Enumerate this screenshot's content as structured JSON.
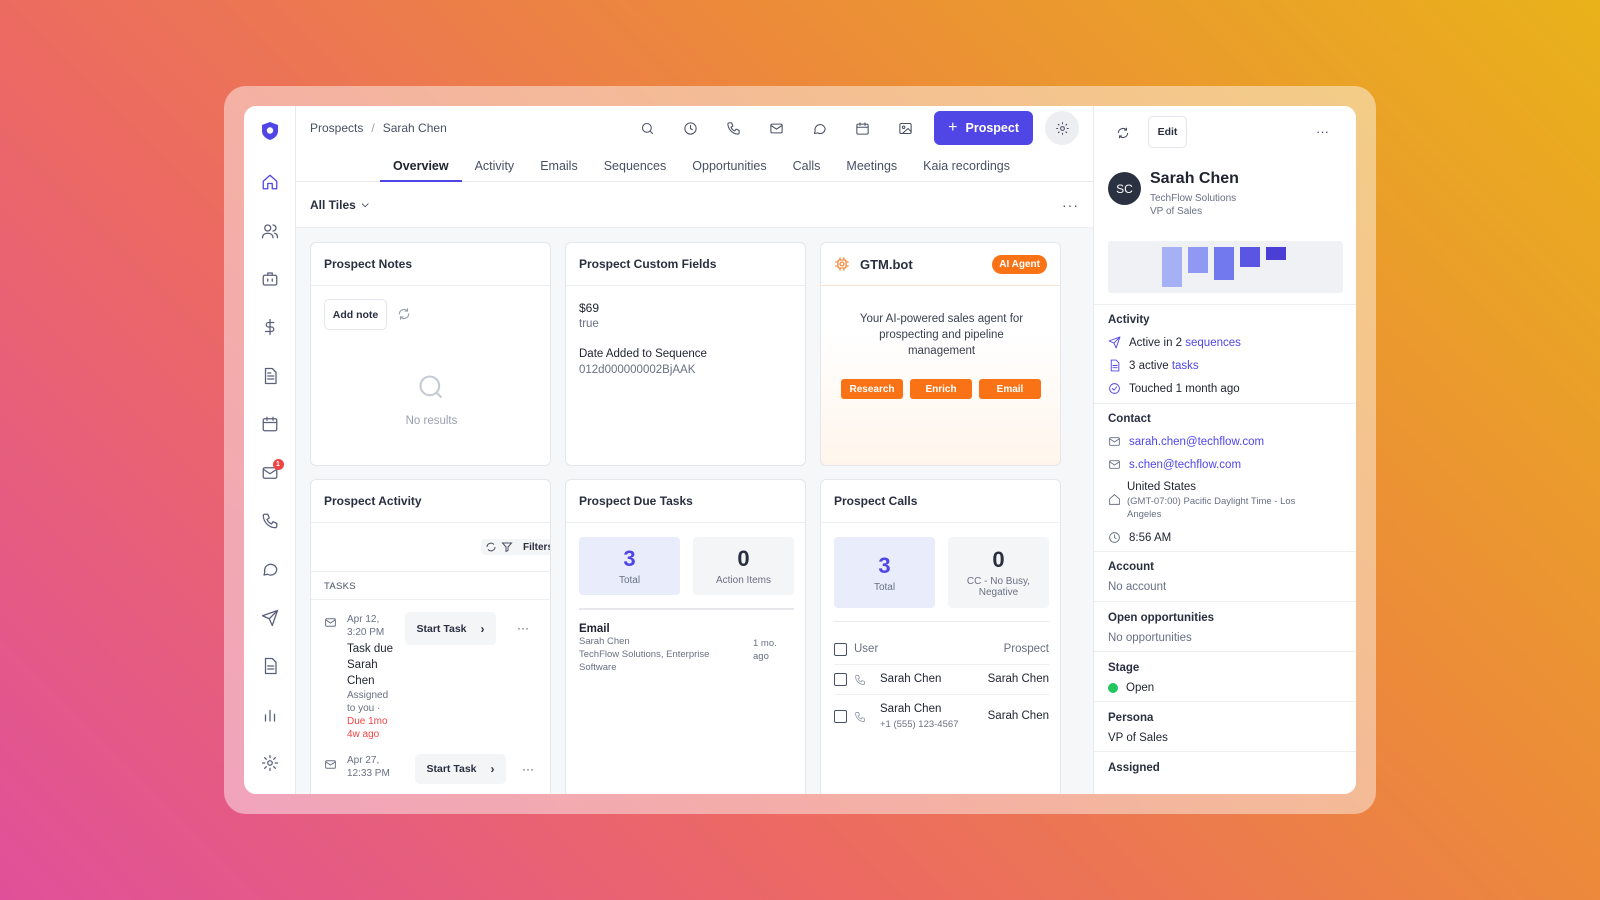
{
  "breadcrumb": {
    "root": "Prospects",
    "separator": "/",
    "current": "Sarah Chen"
  },
  "toolbar": {
    "prospect_button": "Prospect"
  },
  "tabs": [
    "Overview",
    "Activity",
    "Emails",
    "Sequences",
    "Opportunities",
    "Calls",
    "Meetings",
    "Kaia recordings"
  ],
  "subbar": {
    "filter_label": "All Tiles",
    "more": "···"
  },
  "rail": {
    "mail_badge": "1"
  },
  "notes": {
    "title": "Prospect Notes",
    "add_note": "Add note",
    "empty": "No results"
  },
  "custom_fields": {
    "title": "Prospect Custom Fields",
    "value1": "$69",
    "value2": "true",
    "field_label": "Date Added to Sequence",
    "field_value": "012d000000002BjAAK"
  },
  "gtm": {
    "title": "GTM.bot",
    "tag": "AI Agent",
    "description": "Your AI-powered sales agent for prospecting and pipeline management",
    "actions": [
      "Research",
      "Enrich",
      "Email"
    ]
  },
  "activity": {
    "title": "Prospect Activity",
    "filters": "Filters",
    "section": "TASKS",
    "task1": {
      "date": "Apr 12,",
      "time": "3:20 PM",
      "title_l1": "Task due",
      "title_l2": "Sarah",
      "title_l3": "Chen",
      "meta_l1": "Assigned",
      "meta_l2": "to you ·",
      "due_l1": "Due 1mo",
      "due_l2": "4w ago",
      "button": "Start Task"
    },
    "task2": {
      "date": "Apr 27,",
      "time": "12:33 PM",
      "button": "Start Task"
    },
    "more": "···"
  },
  "due_tasks": {
    "title": "Prospect Due Tasks",
    "total_num": "3",
    "total_label": "Total",
    "action_num": "0",
    "action_label": "Action Items",
    "item": {
      "type": "Email",
      "name": "Sarah Chen",
      "company_l1": "TechFlow Solutions, Enterprise",
      "company_l2": "Software",
      "age_l1": "1 mo.",
      "age_l2": "ago"
    }
  },
  "calls": {
    "title": "Prospect Calls",
    "total_num": "3",
    "total_label": "Total",
    "cc_num": "0",
    "cc_label_l1": "CC - No Busy,",
    "cc_label_l2": "Negative",
    "col_user": "User",
    "col_prospect": "Prospect",
    "rows": [
      {
        "user": "Sarah Chen",
        "phone": "",
        "prospect": "Sarah Chen"
      },
      {
        "user": "Sarah Chen",
        "phone": "+1 (555) 123-4567",
        "prospect": "Sarah Chen"
      }
    ]
  },
  "panel": {
    "edit": "Edit",
    "more": "···",
    "initials": "SC",
    "name": "Sarah Chen",
    "company": "TechFlow Solutions",
    "role": "VP of Sales",
    "activity_title": "Activity",
    "seq_prefix": "Active in 2",
    "seq_link": "sequences",
    "tasks_prefix": "3 active",
    "tasks_link": "tasks",
    "touched": "Touched 1 month ago",
    "contact_title": "Contact",
    "email1": "sarah.chen@techflow.com",
    "email2": "s.chen@techflow.com",
    "country": "United States",
    "tz_l1": "(GMT-07:00) Pacific Daylight Time - Los",
    "tz_l2": "Angeles",
    "local_time": "8:56 AM",
    "account_title": "Account",
    "account_value": "No account",
    "opps_title": "Open opportunities",
    "opps_value": "No opportunities",
    "stage_title": "Stage",
    "stage_value": "Open",
    "persona_title": "Persona",
    "persona_value": "VP of Sales",
    "assigned_title": "Assigned"
  },
  "colors": {
    "accent": "#4f46e5",
    "ai": "#f97316",
    "open": "#22c55e",
    "danger": "#ef4444"
  }
}
